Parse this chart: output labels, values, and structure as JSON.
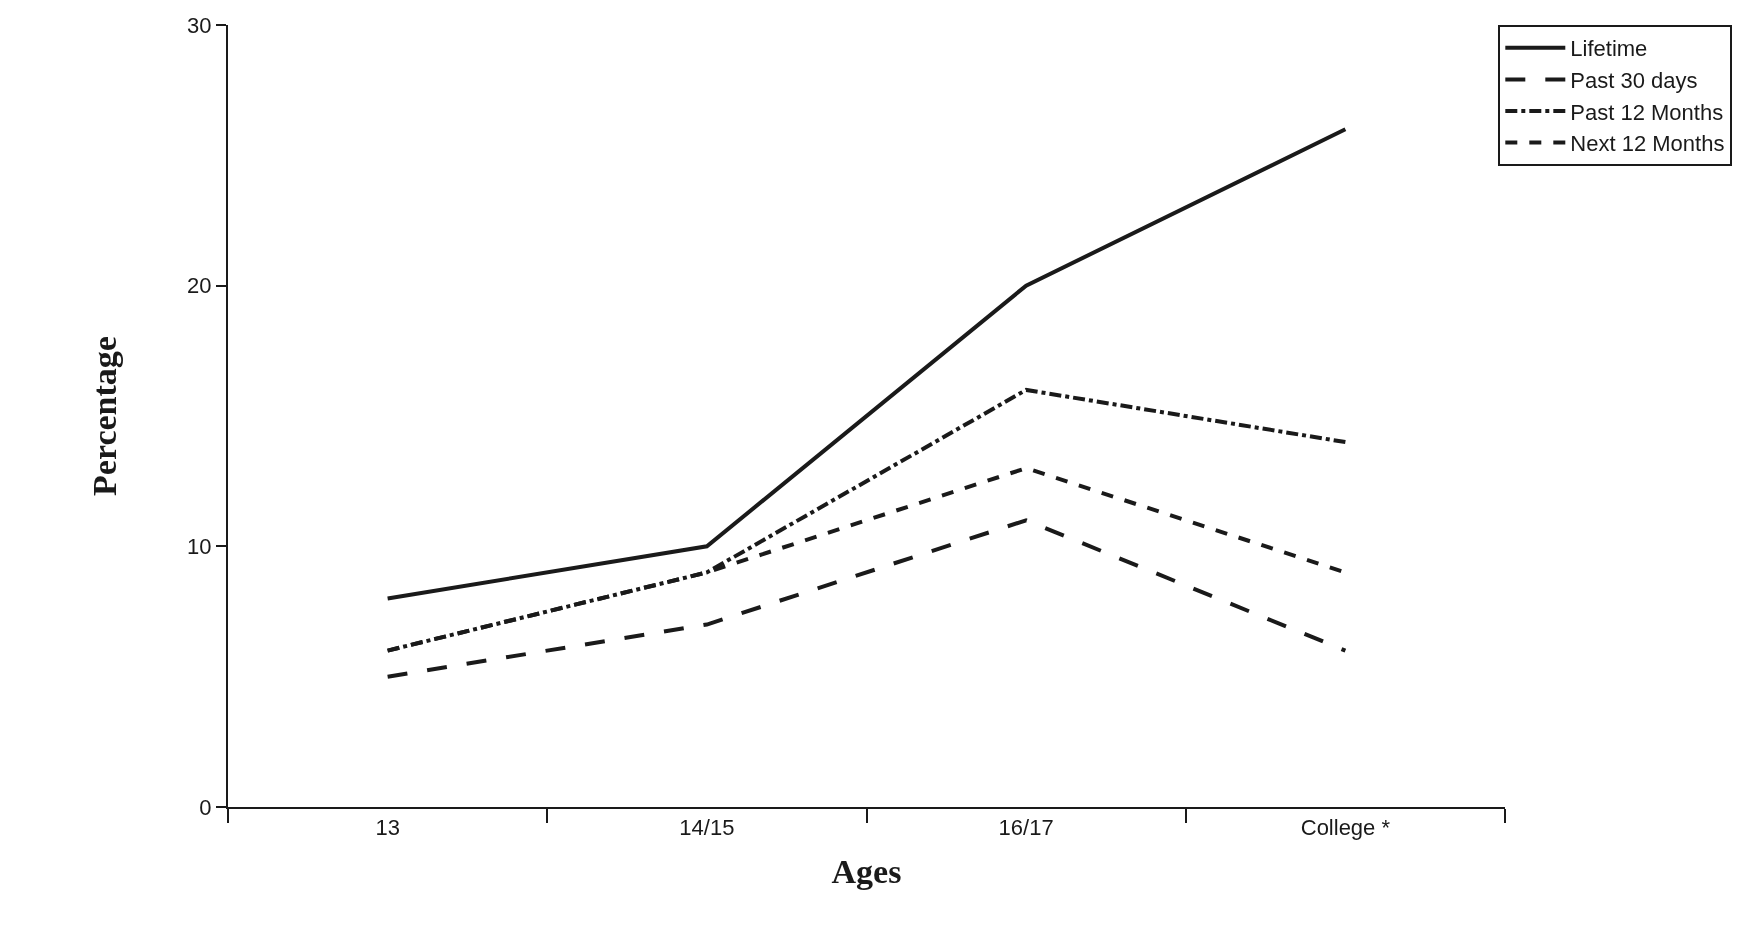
{
  "chart_data": {
    "type": "line",
    "xlabel": "Ages",
    "ylabel": "Percentage",
    "categories": [
      "13",
      "14/15",
      "16/17",
      "College *"
    ],
    "series": [
      {
        "name": "Lifetime",
        "color": "#1a1a1a",
        "line_style": "solid",
        "values": [
          8,
          10,
          20,
          26
        ]
      },
      {
        "name": "Past 30 days",
        "color": "#1a1a1a",
        "line_style": "longdash",
        "values": [
          5,
          7,
          11,
          6
        ]
      },
      {
        "name": "Past 12 Months",
        "color": "#1a1a1a",
        "line_style": "dashdot",
        "values": [
          6,
          9,
          16,
          14
        ]
      },
      {
        "name": "Next 12 Months",
        "color": "#1a1a1a",
        "line_style": "dash",
        "values": [
          6,
          9,
          13,
          9
        ]
      }
    ],
    "ylim": [
      0,
      30
    ],
    "yticks": [
      0,
      10,
      20,
      30
    ],
    "legend": "top right"
  }
}
